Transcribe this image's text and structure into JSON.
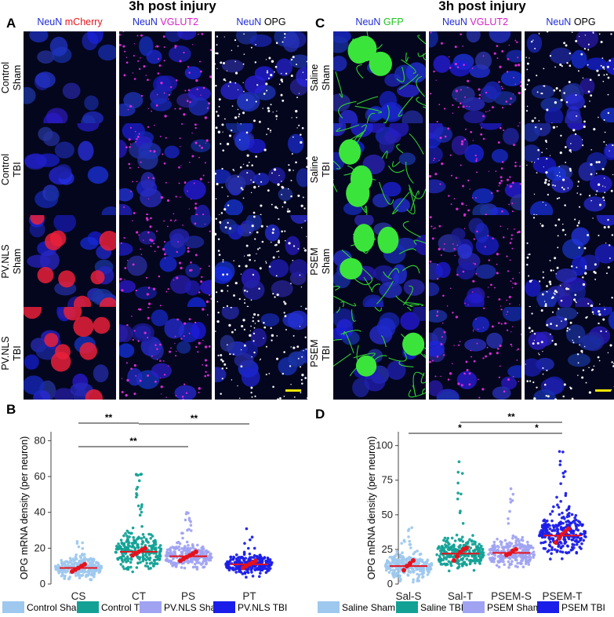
{
  "figure": {
    "left_title": "3h post injury",
    "right_title": "3h post injury",
    "letters": {
      "A": "A",
      "B": "B",
      "C": "C",
      "D": "D"
    },
    "A": {
      "columns": [
        [
          {
            "text": "NeuN",
            "color": "#1f2bd8"
          },
          {
            "text": " mCherry",
            "color": "#e8141e"
          }
        ],
        [
          {
            "text": "NeuN",
            "color": "#1f2bd8"
          },
          {
            "text": " VGLUT2",
            "color": "#d81fc7"
          }
        ],
        [
          {
            "text": "NeuN",
            "color": "#1f2bd8"
          },
          {
            "text": " OPG",
            "color": "#000000"
          }
        ]
      ],
      "rows": [
        [
          "Control",
          "Sham"
        ],
        [
          "Control",
          "TBI"
        ],
        [
          "PV.NLS",
          "Sham"
        ],
        [
          "PV.NLS",
          "TBI"
        ]
      ]
    },
    "C": {
      "columns": [
        [
          {
            "text": "NeuN",
            "color": "#1f2bd8"
          },
          {
            "text": " GFP",
            "color": "#22c322"
          }
        ],
        [
          {
            "text": "NeuN",
            "color": "#1f2bd8"
          },
          {
            "text": " VGLUT2",
            "color": "#d81fc7"
          }
        ],
        [
          {
            "text": "NeuN",
            "color": "#1f2bd8"
          },
          {
            "text": " OPG",
            "color": "#000000"
          }
        ]
      ],
      "rows": [
        [
          "Saline",
          "Sham"
        ],
        [
          "Saline",
          "TBI"
        ],
        [
          "PSEM",
          "Sham"
        ],
        [
          "PSEM",
          "TBI"
        ]
      ]
    },
    "scale_bar_color": "#f2e600"
  },
  "chart_data": [
    {
      "panel": "B",
      "type": "scatter",
      "title": "",
      "xlabel": "",
      "ylabel": "OPG mRNA density (per neuron)",
      "ylim": [
        0,
        85
      ],
      "yticks": [
        0,
        20,
        40,
        60,
        80
      ],
      "categories": [
        "CS",
        "CT",
        "PS",
        "PT"
      ],
      "series": [
        {
          "name": "Control Sham",
          "color": "#9ec8ee",
          "median": 9,
          "spread": 5,
          "max": 24
        },
        {
          "name": "Control TBI",
          "color": "#13a196",
          "median": 18,
          "spread": 8,
          "max": 64
        },
        {
          "name": "PV.NLS Sham",
          "color": "#a0a3f2",
          "median": 15.5,
          "spread": 6,
          "max": 40
        },
        {
          "name": "PV.NLS TBI",
          "color": "#1b1ee8",
          "median": 11,
          "spread": 5,
          "max": 33
        }
      ],
      "mean_points": [
        [
          7,
          8,
          9,
          10,
          11
        ],
        [
          16,
          17,
          18,
          19,
          20
        ],
        [
          13,
          14,
          15,
          16,
          17,
          18
        ],
        [
          9,
          10,
          11,
          12,
          13
        ]
      ],
      "significance": [
        {
          "from": 0,
          "to": 1,
          "label": "**"
        },
        {
          "from": 1,
          "to": 3,
          "label": "**"
        },
        {
          "from": 0,
          "to": 2,
          "label": "**"
        }
      ],
      "legend": [
        "Control Sham",
        "Control TBI",
        "PV.NLS Sham",
        "PV.NLS TBI"
      ]
    },
    {
      "panel": "D",
      "type": "scatter",
      "title": "",
      "xlabel": "",
      "ylabel": "OPG mRNA density (per neuron)",
      "ylim": [
        0,
        110
      ],
      "yticks": [
        0,
        25,
        50,
        75,
        100
      ],
      "categories": [
        "Sal-S",
        "Sal-T",
        "PSEM-S",
        "PSEM-T"
      ],
      "series": [
        {
          "name": "Saline Sham",
          "color": "#9ec8ee",
          "median": 13,
          "spread": 8,
          "max": 42
        },
        {
          "name": "Saline TBI",
          "color": "#13a196",
          "median": 22,
          "spread": 10,
          "max": 89
        },
        {
          "name": "PSEM Sham",
          "color": "#a0a3f2",
          "median": 22.5,
          "spread": 9,
          "max": 70
        },
        {
          "name": "PSEM TBI",
          "color": "#1b1ee8",
          "median": 35,
          "spread": 13,
          "max": 98
        }
      ],
      "mean_points": [
        [
          10,
          13,
          15,
          17
        ],
        [
          17,
          20,
          23,
          25,
          26
        ],
        [
          21,
          22,
          24,
          25
        ],
        [
          30,
          33,
          36,
          38,
          40
        ]
      ],
      "significance": [
        {
          "from": 1,
          "to": 3,
          "label": "**"
        },
        {
          "from": 0,
          "to": 2,
          "label": "*"
        },
        {
          "from": 2,
          "to": 3,
          "label": "*"
        }
      ],
      "legend": [
        "Saline Sham",
        "Saline TBI",
        "PSEM Sham",
        "PSEM TBI"
      ]
    }
  ]
}
